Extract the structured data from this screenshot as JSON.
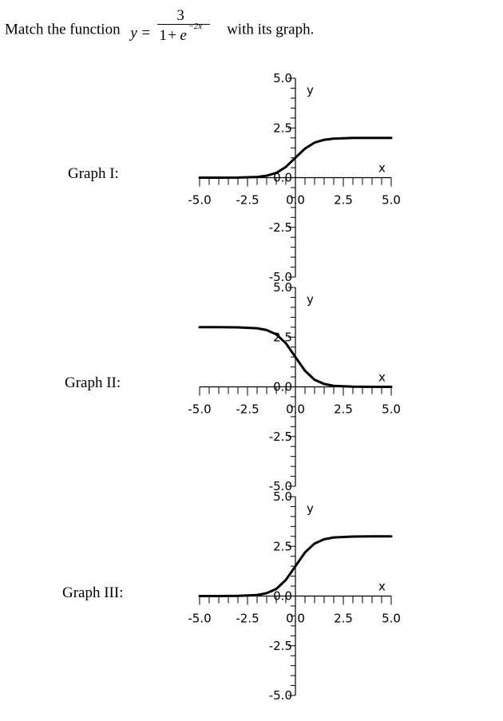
{
  "question": {
    "prefix": "Match the function",
    "suffix": "with its graph.",
    "formula": {
      "lhs": "y",
      "equals": "=",
      "numerator": "3",
      "denominator_one": "1",
      "denominator_plus": "+",
      "denominator_base": "e",
      "exponent": "−2x"
    }
  },
  "graphs": [
    {
      "label": "Graph I:"
    },
    {
      "label": "Graph II:"
    },
    {
      "label": "Graph III:"
    }
  ],
  "chart_data": [
    {
      "type": "line",
      "title": "",
      "xlabel": "x",
      "ylabel": "y",
      "xlim": [
        -5,
        5
      ],
      "ylim": [
        -5,
        5
      ],
      "x_ticks": [
        "-5.0",
        "-2.5",
        "0.0",
        "2.5",
        "5.0"
      ],
      "y_ticks": [
        "5.0",
        "2.5",
        "0.0",
        "-2.5",
        "-5.0"
      ],
      "line_color": "#000000",
      "series": [
        {
          "x": [
            -5,
            -4,
            -3,
            -2,
            -1.5,
            -1,
            -0.5,
            0,
            0.5,
            1,
            1.5,
            2,
            3,
            4,
            5
          ],
          "y": [
            0.0,
            0.001,
            0.005,
            0.036,
            0.095,
            0.238,
            0.538,
            1.0,
            1.462,
            1.762,
            1.905,
            1.964,
            1.995,
            1.999,
            2.0
          ]
        }
      ]
    },
    {
      "type": "line",
      "title": "",
      "xlabel": "x",
      "ylabel": "y",
      "xlim": [
        -5,
        5
      ],
      "ylim": [
        -5,
        5
      ],
      "x_ticks": [
        "-5.0",
        "-2.5",
        "0.0",
        "2.5",
        "5.0"
      ],
      "y_ticks": [
        "5.0",
        "2.5",
        "0.0",
        "-2.5",
        "-5.0"
      ],
      "line_color": "#000000",
      "series": [
        {
          "x": [
            -5,
            -4,
            -3,
            -2,
            -1.5,
            -1,
            -0.5,
            0,
            0.5,
            1,
            1.5,
            2,
            3,
            4,
            5
          ],
          "y": [
            3.0,
            2.999,
            2.993,
            2.946,
            2.857,
            2.642,
            2.193,
            1.5,
            0.807,
            0.358,
            0.143,
            0.054,
            0.007,
            0.001,
            0.0
          ]
        }
      ]
    },
    {
      "type": "line",
      "title": "",
      "xlabel": "x",
      "ylabel": "y",
      "xlim": [
        -5,
        5
      ],
      "ylim": [
        -5,
        5
      ],
      "x_ticks": [
        "-5.0",
        "-2.5",
        "0.0",
        "2.5",
        "5.0"
      ],
      "y_ticks": [
        "5.0",
        "2.5",
        "0.0",
        "-2.5",
        "-5.0"
      ],
      "line_color": "#000000",
      "series": [
        {
          "x": [
            -5,
            -4,
            -3,
            -2,
            -1.5,
            -1,
            -0.5,
            0,
            0.5,
            1,
            1.5,
            2,
            3,
            4,
            5
          ],
          "y": [
            0.0,
            0.001,
            0.007,
            0.054,
            0.143,
            0.358,
            0.807,
            1.5,
            2.193,
            2.642,
            2.857,
            2.946,
            2.993,
            2.999,
            3.0
          ]
        }
      ]
    }
  ]
}
